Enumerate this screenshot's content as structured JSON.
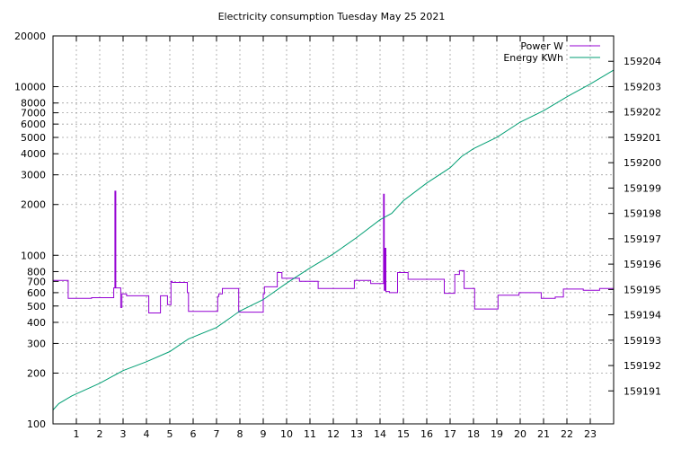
{
  "chart_data": {
    "type": "line",
    "title": "Electricity consumption Tuesday May 25 2021",
    "xlabel": "",
    "ylabel": "",
    "y2label": "",
    "x_range": [
      0,
      24
    ],
    "y_range": [
      100,
      20000
    ],
    "y_scale": "log",
    "y2_range": [
      159189.7,
      159205
    ],
    "grid": true,
    "legend_position": "top-right",
    "x_ticks": [
      "1",
      "2",
      "3",
      "4",
      "5",
      "6",
      "7",
      "8",
      "9",
      "10",
      "11",
      "12",
      "13",
      "14",
      "15",
      "16",
      "17",
      "18",
      "19",
      "20",
      "21",
      "22",
      "23"
    ],
    "y_ticks": [
      {
        "v": 100,
        "label": "100"
      },
      {
        "v": 200,
        "label": "200"
      },
      {
        "v": 300,
        "label": "300"
      },
      {
        "v": 400,
        "label": "400"
      },
      {
        "v": 500,
        "label": "500"
      },
      {
        "v": 600,
        "label": "600"
      },
      {
        "v": 700,
        "label": "700"
      },
      {
        "v": 800,
        "label": "800"
      },
      {
        "v": 1000,
        "label": "1000"
      },
      {
        "v": 2000,
        "label": "2000"
      },
      {
        "v": 3000,
        "label": "3000"
      },
      {
        "v": 4000,
        "label": "4000"
      },
      {
        "v": 5000,
        "label": "5000"
      },
      {
        "v": 6000,
        "label": "6000"
      },
      {
        "v": 7000,
        "label": "7000"
      },
      {
        "v": 8000,
        "label": "8000"
      },
      {
        "v": 10000,
        "label": "10000"
      },
      {
        "v": 20000,
        "label": "20000"
      }
    ],
    "y2_ticks": [
      "159191",
      "159192",
      "159193",
      "159194",
      "159195",
      "159196",
      "159197",
      "159198",
      "159199",
      "159200",
      "159201",
      "159202",
      "159203",
      "159204"
    ],
    "series": [
      {
        "name": "Power W",
        "axis": "y",
        "color": "#9400d3",
        "step": true,
        "points": [
          [
            0,
            710
          ],
          [
            0.65,
            710
          ],
          [
            0.65,
            555
          ],
          [
            1.65,
            555
          ],
          [
            1.65,
            560
          ],
          [
            2.6,
            560
          ],
          [
            2.6,
            640
          ],
          [
            2.65,
            640
          ],
          [
            2.65,
            2400
          ],
          [
            2.69,
            2400
          ],
          [
            2.69,
            640
          ],
          [
            2.9,
            640
          ],
          [
            2.9,
            490
          ],
          [
            2.95,
            490
          ],
          [
            2.95,
            590
          ],
          [
            3.15,
            590
          ],
          [
            3.15,
            575
          ],
          [
            4.1,
            575
          ],
          [
            4.1,
            455
          ],
          [
            4.6,
            455
          ],
          [
            4.6,
            575
          ],
          [
            4.9,
            575
          ],
          [
            4.9,
            510
          ],
          [
            5.05,
            510
          ],
          [
            5.05,
            700
          ],
          [
            5.1,
            700
          ],
          [
            5.1,
            690
          ],
          [
            5.75,
            690
          ],
          [
            5.75,
            600
          ],
          [
            5.8,
            600
          ],
          [
            5.8,
            465
          ],
          [
            7.05,
            465
          ],
          [
            7.05,
            570
          ],
          [
            7.1,
            570
          ],
          [
            7.1,
            590
          ],
          [
            7.25,
            590
          ],
          [
            7.25,
            635
          ],
          [
            7.95,
            635
          ],
          [
            7.95,
            460
          ],
          [
            9.0,
            460
          ],
          [
            9.0,
            590
          ],
          [
            9.05,
            590
          ],
          [
            9.05,
            650
          ],
          [
            9.6,
            650
          ],
          [
            9.6,
            790
          ],
          [
            9.8,
            790
          ],
          [
            9.8,
            730
          ],
          [
            10.55,
            730
          ],
          [
            10.55,
            700
          ],
          [
            11.35,
            700
          ],
          [
            11.35,
            635
          ],
          [
            12.9,
            635
          ],
          [
            12.9,
            710
          ],
          [
            13.6,
            710
          ],
          [
            13.6,
            680
          ],
          [
            14.15,
            680
          ],
          [
            14.15,
            2300
          ],
          [
            14.18,
            2300
          ],
          [
            14.18,
            620
          ],
          [
            14.22,
            620
          ],
          [
            14.22,
            1100
          ],
          [
            14.25,
            1100
          ],
          [
            14.25,
            610
          ],
          [
            14.4,
            610
          ],
          [
            14.4,
            600
          ],
          [
            14.75,
            600
          ],
          [
            14.75,
            790
          ],
          [
            15.2,
            790
          ],
          [
            15.2,
            720
          ],
          [
            16.75,
            720
          ],
          [
            16.75,
            595
          ],
          [
            17.2,
            595
          ],
          [
            17.2,
            770
          ],
          [
            17.4,
            770
          ],
          [
            17.4,
            810
          ],
          [
            17.6,
            810
          ],
          [
            17.6,
            635
          ],
          [
            18.05,
            635
          ],
          [
            18.05,
            480
          ],
          [
            19.05,
            480
          ],
          [
            19.05,
            580
          ],
          [
            19.95,
            580
          ],
          [
            19.95,
            600
          ],
          [
            20.9,
            600
          ],
          [
            20.9,
            555
          ],
          [
            21.5,
            555
          ],
          [
            21.5,
            565
          ],
          [
            21.85,
            565
          ],
          [
            21.85,
            630
          ],
          [
            22.7,
            630
          ],
          [
            22.7,
            620
          ],
          [
            23.4,
            620
          ],
          [
            23.4,
            635
          ],
          [
            24.0,
            635
          ]
        ]
      },
      {
        "name": "Energy KWh",
        "axis": "y2",
        "color": "#009e73",
        "step": false,
        "points": [
          [
            0,
            159190.25
          ],
          [
            0.25,
            159190.5
          ],
          [
            0.8,
            159190.8
          ],
          [
            2.0,
            159191.3
          ],
          [
            3.0,
            159191.8
          ],
          [
            4.0,
            159192.15
          ],
          [
            5.0,
            159192.55
          ],
          [
            5.8,
            159193.05
          ],
          [
            7.0,
            159193.5
          ],
          [
            8.0,
            159194.15
          ],
          [
            9.0,
            159194.6
          ],
          [
            10.0,
            159195.25
          ],
          [
            11.0,
            159195.85
          ],
          [
            12.0,
            159196.4
          ],
          [
            13.0,
            159197.05
          ],
          [
            14.0,
            159197.75
          ],
          [
            14.5,
            159198.0
          ],
          [
            15.0,
            159198.5
          ],
          [
            16.0,
            159199.2
          ],
          [
            17.0,
            159199.8
          ],
          [
            17.5,
            159200.25
          ],
          [
            18.0,
            159200.55
          ],
          [
            19.0,
            159201.0
          ],
          [
            20.0,
            159201.6
          ],
          [
            21.0,
            159202.05
          ],
          [
            22.0,
            159202.6
          ],
          [
            23.0,
            159203.1
          ],
          [
            24.0,
            159203.65
          ]
        ]
      }
    ]
  }
}
